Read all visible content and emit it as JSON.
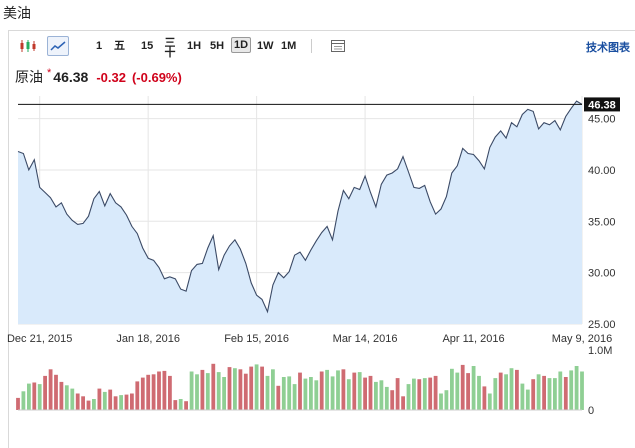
{
  "page": {
    "title": "美油"
  },
  "toolbar": {
    "candle_icon": "candlestick-icon",
    "line_icon": "line-chart-icon",
    "timeframes": [
      {
        "label": "1",
        "active": false
      },
      {
        "label": "五",
        "active": false
      },
      {
        "label": "15",
        "active": false
      },
      {
        "label": "三\n十",
        "active": false
      },
      {
        "label": "1H",
        "active": false
      },
      {
        "label": "5H",
        "active": false
      },
      {
        "label": "1D",
        "active": true
      },
      {
        "label": "1W",
        "active": false
      },
      {
        "label": "1M",
        "active": false
      }
    ],
    "settings_icon": "chart-settings-icon",
    "tech_chart_label": "技术图表"
  },
  "quote": {
    "name": "原油",
    "star": "*",
    "price": "46.38",
    "change": "-0.32",
    "change_pct": "(-0.69%)"
  },
  "colors": {
    "line": "#3b4a66",
    "area_fill": "#d9eafb",
    "up_bar": "#8fcf94",
    "down_bar": "#cf6b72",
    "negative_text": "#d0021b",
    "price_tag_bg": "#111111"
  },
  "chart_data": {
    "type": "area",
    "instrument": "原油",
    "current_price_label": "46.38",
    "ylim": [
      25,
      47.2
    ],
    "y_ticks": [
      "45.00",
      "40.00",
      "35.00",
      "30.00",
      "25.00"
    ],
    "y_tick_values": [
      45,
      40,
      35,
      30,
      25
    ],
    "x_tick_labels": [
      "Dec 21, 2015",
      "Jan 18, 2016",
      "Feb 15, 2016",
      "Mar 14, 2016",
      "Apr 11, 2016",
      "May 9, 2016"
    ],
    "x_tick_index": [
      4,
      24,
      44,
      64,
      84,
      104
    ],
    "series": [
      {
        "values": [
          41.8,
          41.6,
          40.0,
          41.0,
          38.3,
          37.8,
          37.3,
          36.4,
          36.8,
          35.7,
          35.1,
          34.7,
          34.8,
          35.5,
          37.2,
          37.9,
          36.5,
          37.7,
          36.8,
          36.4,
          35.6,
          34.5,
          33.8,
          32.4,
          31.4,
          31.2,
          30.5,
          29.4,
          29.6,
          29.4,
          28.4,
          28.2,
          30.2,
          30.8,
          30.9,
          32.4,
          33.6,
          30.3,
          31.7,
          32.6,
          33.2,
          32.3,
          30.9,
          29.0,
          27.8,
          27.4,
          26.2,
          28.8,
          30.0,
          29.5,
          30.1,
          31.7,
          32.0,
          31.2,
          32.2,
          33.1,
          33.9,
          34.5,
          33.2,
          36.0,
          38.0,
          37.2,
          38.3,
          38.1,
          39.4,
          37.8,
          36.4,
          38.6,
          39.5,
          39.7,
          40.1,
          41.3,
          39.8,
          38.3,
          38.2,
          38.5,
          36.9,
          35.7,
          36.2,
          37.4,
          39.7,
          40.4,
          42.1,
          41.6,
          41.5,
          40.9,
          40.1,
          42.2,
          43.2,
          43.8,
          43.1,
          44.6,
          44.2,
          45.4,
          45.9,
          45.7,
          44.0,
          44.6,
          44.4,
          44.8,
          43.9,
          45.2,
          46.0,
          46.7,
          46.38
        ]
      }
    ],
    "volume": {
      "ylim_label_top": "1.0M",
      "ylim_label_bottom": "0",
      "ylim": [
        0,
        1000000
      ],
      "values": [
        220000,
        340000,
        480000,
        500000,
        470000,
        620000,
        740000,
        640000,
        510000,
        450000,
        390000,
        300000,
        250000,
        170000,
        200000,
        390000,
        330000,
        370000,
        250000,
        270000,
        280000,
        300000,
        520000,
        590000,
        640000,
        650000,
        700000,
        710000,
        620000,
        180000,
        200000,
        160000,
        700000,
        650000,
        730000,
        670000,
        840000,
        690000,
        600000,
        780000,
        760000,
        740000,
        660000,
        790000,
        830000,
        790000,
        620000,
        740000,
        440000,
        600000,
        610000,
        470000,
        680000,
        570000,
        600000,
        540000,
        700000,
        730000,
        610000,
        720000,
        740000,
        560000,
        680000,
        690000,
        590000,
        620000,
        510000,
        540000,
        420000,
        360000,
        580000,
        250000,
        470000,
        570000,
        560000,
        580000,
        590000,
        620000,
        300000,
        360000,
        750000,
        680000,
        820000,
        670000,
        800000,
        620000,
        430000,
        300000,
        580000,
        680000,
        650000,
        760000,
        730000,
        480000,
        370000,
        560000,
        650000,
        620000,
        580000,
        580000,
        700000,
        600000,
        720000,
        800000,
        700000
      ],
      "up": [
        false,
        true,
        true,
        false,
        true,
        false,
        false,
        false,
        false,
        true,
        true,
        false,
        false,
        false,
        true,
        false,
        true,
        false,
        false,
        true,
        false,
        false,
        false,
        false,
        false,
        false,
        false,
        false,
        false,
        false,
        true,
        false,
        true,
        true,
        false,
        true,
        false,
        true,
        true,
        false,
        true,
        false,
        false,
        false,
        true,
        false,
        true,
        true,
        false,
        true,
        true,
        true,
        false,
        true,
        true,
        true,
        false,
        true,
        true,
        true,
        false,
        true,
        false,
        true,
        false,
        false,
        true,
        true,
        true,
        false,
        false,
        false,
        true,
        true,
        false,
        true,
        false,
        false,
        true,
        true,
        true,
        true,
        false,
        false,
        true,
        true,
        false,
        true,
        true,
        false,
        true,
        true,
        false,
        true,
        true,
        false,
        true,
        false,
        true,
        true,
        true,
        false,
        true,
        true,
        true
      ]
    }
  }
}
